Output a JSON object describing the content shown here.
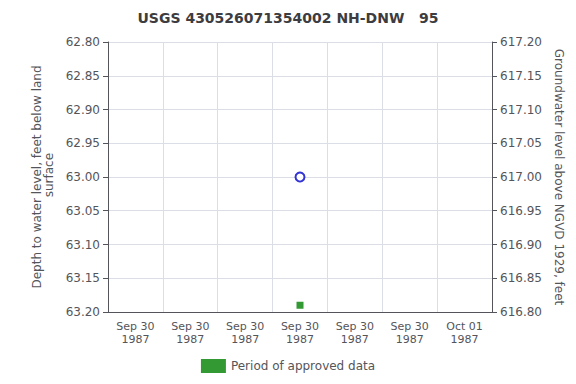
{
  "chart_data": {
    "type": "scatter",
    "title": "USGS 430526071354002 NH-DNW   95",
    "y_label": "Depth to water level, feet below land\n surface",
    "y2_label": "Groundwater level above NGVD 1929, feet",
    "categories": [
      "Sep 30\n1987",
      "Sep 30\n1987",
      "Sep 30\n1987",
      "Sep 30\n1987",
      "Sep 30\n1987",
      "Sep 30\n1987",
      "Oct 01\n1987"
    ],
    "series": [
      {
        "color": "#0000cc",
        "marker": "circle-open",
        "values": [
          null,
          null,
          null,
          63.0,
          null,
          null,
          null
        ]
      },
      {
        "name": "Period of approved data",
        "color": "#008000",
        "marker": "square",
        "values": [
          null,
          null,
          null,
          63.19,
          null,
          null,
          null
        ]
      }
    ],
    "ylim": [
      63.2,
      62.8
    ],
    "yticks": [
      {
        "value": 62.8,
        "label": "62.80"
      },
      {
        "value": 62.85,
        "label": "62.85"
      },
      {
        "value": 62.9,
        "label": "62.90"
      },
      {
        "value": 62.95,
        "label": "62.95"
      },
      {
        "value": 63.0,
        "label": "63.00"
      },
      {
        "value": 63.05,
        "label": "63.05"
      },
      {
        "value": 63.1,
        "label": "63.10"
      },
      {
        "value": 63.15,
        "label": "63.15"
      },
      {
        "value": 63.2,
        "label": "63.20"
      }
    ],
    "y2lim": [
      616.8,
      617.2
    ],
    "y2ticks": [
      {
        "value": 617.2,
        "label": "617.20"
      },
      {
        "value": 617.15,
        "label": "617.15"
      },
      {
        "value": 617.1,
        "label": "617.10"
      },
      {
        "value": 617.05,
        "label": "617.05"
      },
      {
        "value": 617.0,
        "label": "617.00"
      },
      {
        "value": 616.95,
        "label": "616.95"
      },
      {
        "value": 616.9,
        "label": "616.90"
      },
      {
        "value": 616.85,
        "label": "616.85"
      },
      {
        "value": 616.8,
        "label": "616.80"
      }
    ],
    "grid": true,
    "legend": "bottom"
  }
}
